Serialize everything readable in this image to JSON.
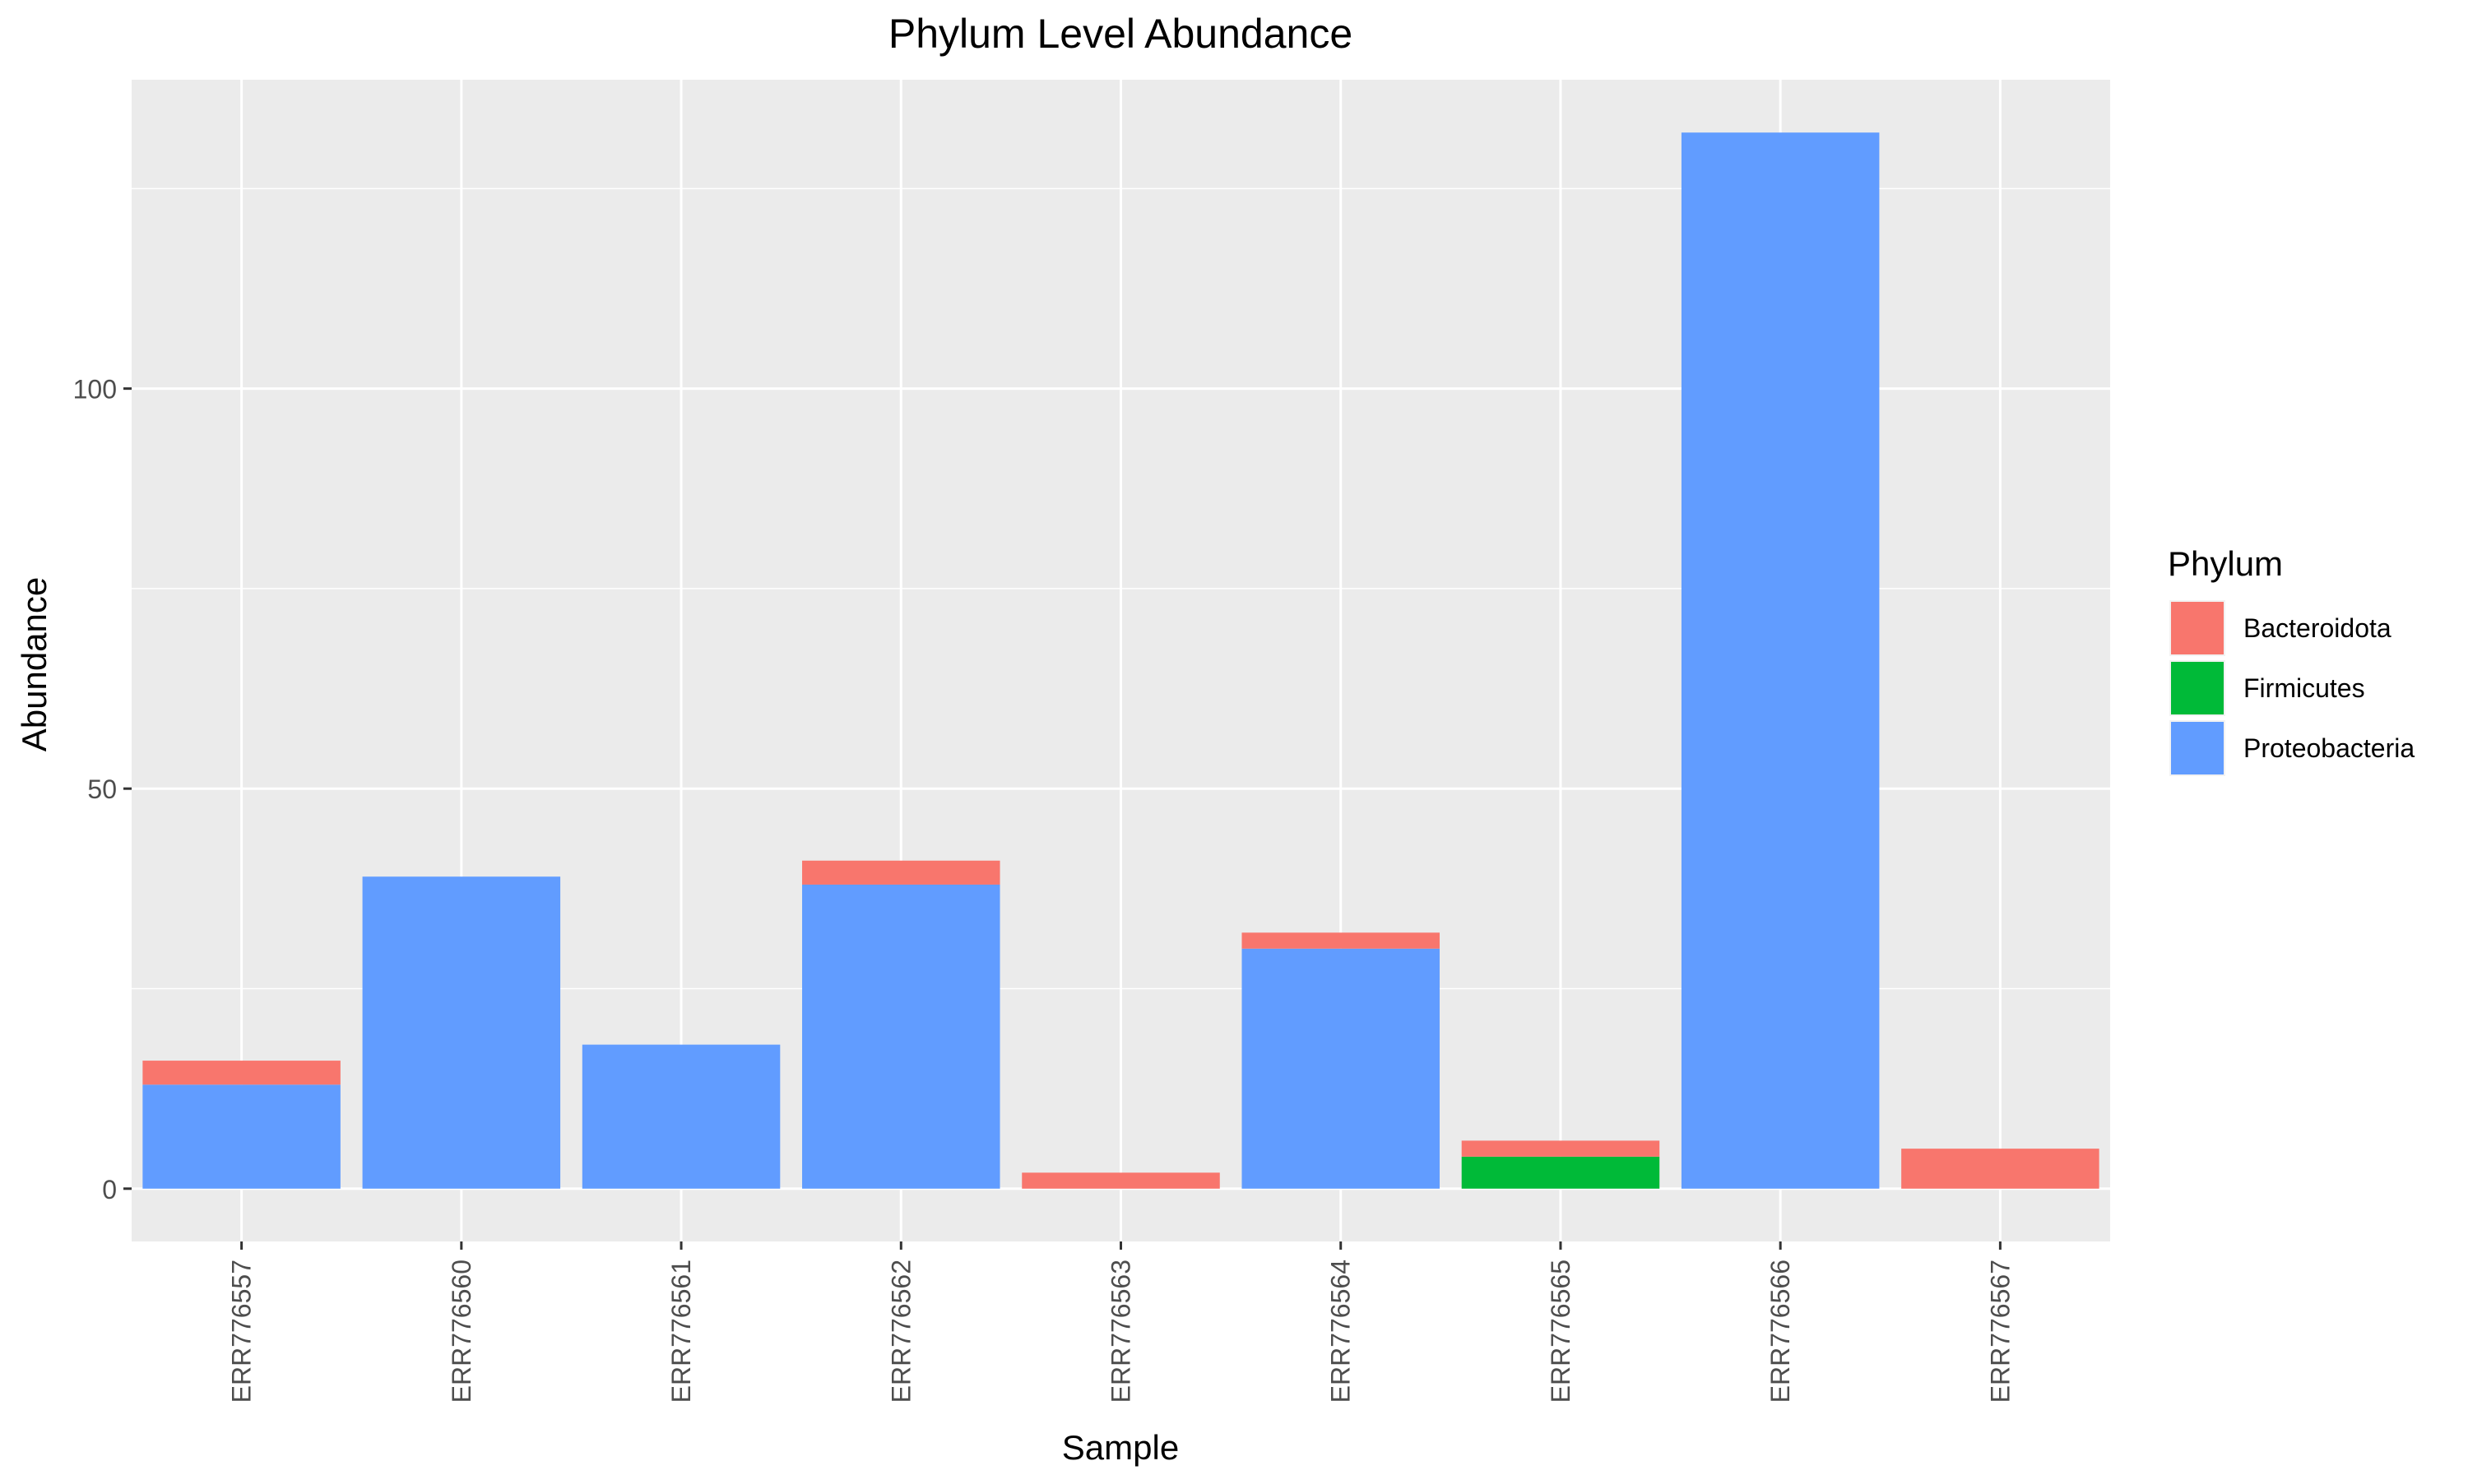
{
  "chart_data": {
    "type": "bar",
    "stacked": true,
    "title": "Phylum Level Abundance",
    "xlabel": "Sample",
    "ylabel": "Abundance",
    "categories": [
      "ERR776557",
      "ERR776560",
      "ERR776561",
      "ERR776562",
      "ERR776563",
      "ERR776564",
      "ERR776565",
      "ERR776566",
      "ERR776567"
    ],
    "series": [
      {
        "name": "Proteobacteria",
        "color": "#619CFF",
        "values": [
          13,
          39,
          18,
          38,
          0,
          30,
          0,
          132,
          0
        ]
      },
      {
        "name": "Firmicutes",
        "color": "#00BA38",
        "values": [
          0,
          0,
          0,
          0,
          0,
          0,
          4,
          0,
          0
        ]
      },
      {
        "name": "Bacteroidota",
        "color": "#F8766D",
        "values": [
          3,
          0,
          0,
          3,
          2,
          2,
          2,
          0,
          5
        ]
      }
    ],
    "ylim": [
      -6.6,
      138.6
    ],
    "yticks": [
      0,
      50,
      100
    ],
    "ytick_labels": [
      "0",
      "50",
      "100"
    ],
    "grid": true,
    "panel_background": "#EBEBEB",
    "legend": {
      "title": "Phylum",
      "placement": "right",
      "items": [
        "Bacteroidota",
        "Firmicutes",
        "Proteobacteria"
      ]
    }
  }
}
